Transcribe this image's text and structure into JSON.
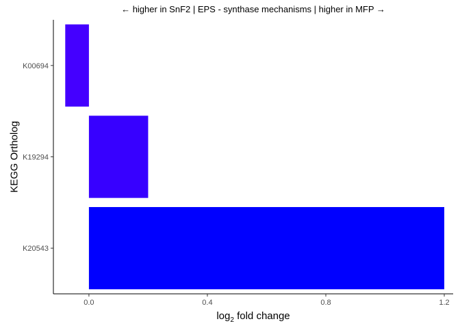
{
  "chart_data": {
    "type": "bar",
    "orientation": "horizontal",
    "title": "← higher in SnF2 | EPS - synthase mechanisms | higher in MFP →",
    "xlabel": "fold change",
    "xlabel_prefix": "log",
    "xlabel_subscript": "2",
    "ylabel": "KEGG Ortholog",
    "categories": [
      "K00694",
      "K19294",
      "K20543"
    ],
    "values": [
      -0.08,
      0.2,
      1.2
    ],
    "bar_colors": [
      "#4400ff",
      "#3700ff",
      "#0000ff"
    ],
    "xlim": [
      -0.12,
      1.23
    ],
    "xticks": [
      0.0,
      0.4,
      0.8,
      1.2
    ],
    "xtick_labels": [
      "0.0",
      "0.4",
      "0.8",
      "1.2"
    ],
    "grid": false,
    "legend": "none"
  }
}
